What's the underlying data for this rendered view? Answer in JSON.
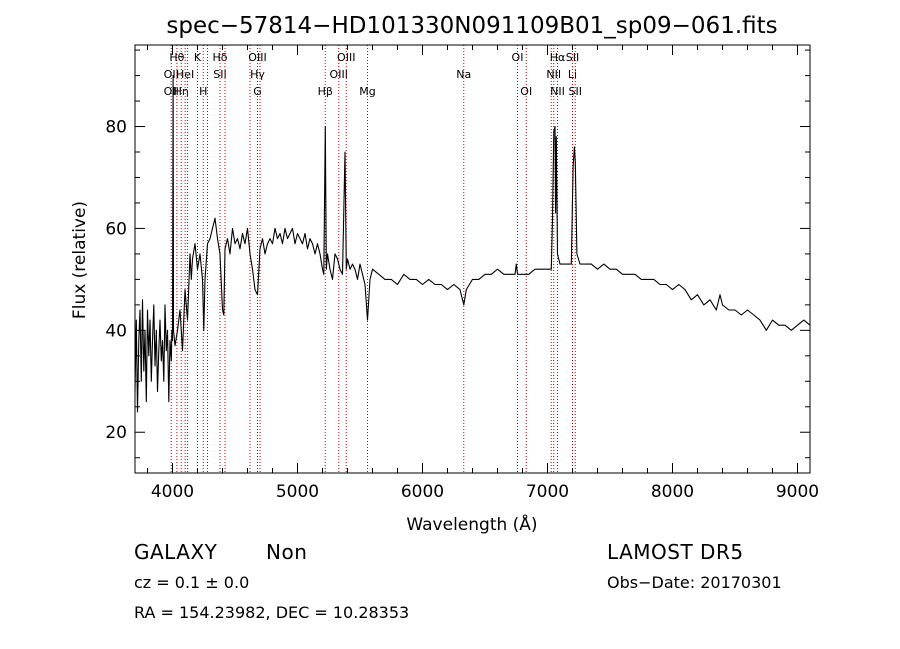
{
  "chart_data": {
    "type": "line",
    "title": "spec−57814−HD101330N091109B01_sp09−061.fits",
    "xlabel": "Wavelength (Å)",
    "ylabel": "Flux (relative)",
    "xlim": [
      3700,
      9100
    ],
    "ylim": [
      12,
      96
    ],
    "xticks": [
      4000,
      5000,
      6000,
      7000,
      8000,
      9000
    ],
    "yticks": [
      20,
      40,
      60,
      80
    ],
    "grid": false,
    "series": [
      {
        "color": "#000000",
        "points": [
          [
            3700,
            28
          ],
          [
            3710,
            42
          ],
          [
            3720,
            24
          ],
          [
            3730,
            38
          ],
          [
            3740,
            44
          ],
          [
            3750,
            30
          ],
          [
            3760,
            46
          ],
          [
            3770,
            32
          ],
          [
            3780,
            40
          ],
          [
            3790,
            26
          ],
          [
            3800,
            44
          ],
          [
            3810,
            35
          ],
          [
            3820,
            42
          ],
          [
            3830,
            30
          ],
          [
            3840,
            38
          ],
          [
            3850,
            45
          ],
          [
            3860,
            33
          ],
          [
            3870,
            40
          ],
          [
            3880,
            28
          ],
          [
            3890,
            36
          ],
          [
            3900,
            42
          ],
          [
            3910,
            34
          ],
          [
            3920,
            38
          ],
          [
            3930,
            30
          ],
          [
            3940,
            45
          ],
          [
            3950,
            36
          ],
          [
            3960,
            40
          ],
          [
            3970,
            26
          ],
          [
            3980,
            38
          ],
          [
            3990,
            34
          ],
          [
            3995,
            40
          ],
          [
            4000,
            38
          ],
          [
            4005,
            90
          ],
          [
            4008,
            40
          ],
          [
            4020,
            37
          ],
          [
            4040,
            40
          ],
          [
            4060,
            44
          ],
          [
            4080,
            36
          ],
          [
            4100,
            48
          ],
          [
            4120,
            42
          ],
          [
            4140,
            55
          ],
          [
            4150,
            50
          ],
          [
            4160,
            54
          ],
          [
            4180,
            57
          ],
          [
            4200,
            52
          ],
          [
            4220,
            55
          ],
          [
            4240,
            50
          ],
          [
            4250,
            40
          ],
          [
            4260,
            50
          ],
          [
            4280,
            57
          ],
          [
            4300,
            58
          ],
          [
            4320,
            60
          ],
          [
            4340,
            62
          ],
          [
            4360,
            58
          ],
          [
            4380,
            55
          ],
          [
            4400,
            44
          ],
          [
            4410,
            43
          ],
          [
            4420,
            56
          ],
          [
            4440,
            58
          ],
          [
            4460,
            55
          ],
          [
            4480,
            60
          ],
          [
            4500,
            57
          ],
          [
            4520,
            58
          ],
          [
            4540,
            56
          ],
          [
            4560,
            59
          ],
          [
            4580,
            57
          ],
          [
            4600,
            60
          ],
          [
            4620,
            55
          ],
          [
            4640,
            52
          ],
          [
            4660,
            48
          ],
          [
            4680,
            47
          ],
          [
            4700,
            56
          ],
          [
            4720,
            58
          ],
          [
            4740,
            55
          ],
          [
            4760,
            57
          ],
          [
            4780,
            58
          ],
          [
            4800,
            57
          ],
          [
            4820,
            60
          ],
          [
            4840,
            58
          ],
          [
            4860,
            59
          ],
          [
            4880,
            57
          ],
          [
            4900,
            60
          ],
          [
            4920,
            58
          ],
          [
            4940,
            59
          ],
          [
            4960,
            60
          ],
          [
            4980,
            57
          ],
          [
            5000,
            59
          ],
          [
            5020,
            58
          ],
          [
            5040,
            57
          ],
          [
            5060,
            59
          ],
          [
            5080,
            56
          ],
          [
            5100,
            58
          ],
          [
            5120,
            57
          ],
          [
            5140,
            55
          ],
          [
            5160,
            57
          ],
          [
            5180,
            55
          ],
          [
            5200,
            52
          ],
          [
            5210,
            51
          ],
          [
            5222,
            80
          ],
          [
            5230,
            52
          ],
          [
            5240,
            55
          ],
          [
            5260,
            52
          ],
          [
            5280,
            50
          ],
          [
            5300,
            55
          ],
          [
            5320,
            54
          ],
          [
            5340,
            52
          ],
          [
            5360,
            51
          ],
          [
            5380,
            75
          ],
          [
            5390,
            52
          ],
          [
            5400,
            54
          ],
          [
            5420,
            52
          ],
          [
            5440,
            53
          ],
          [
            5460,
            52
          ],
          [
            5480,
            50
          ],
          [
            5500,
            53
          ],
          [
            5520,
            51
          ],
          [
            5540,
            49
          ],
          [
            5560,
            42
          ],
          [
            5580,
            50
          ],
          [
            5600,
            52
          ],
          [
            5650,
            51
          ],
          [
            5700,
            50
          ],
          [
            5750,
            50
          ],
          [
            5800,
            49
          ],
          [
            5850,
            51
          ],
          [
            5900,
            50
          ],
          [
            5950,
            50
          ],
          [
            6000,
            49
          ],
          [
            6050,
            50
          ],
          [
            6100,
            49
          ],
          [
            6150,
            49
          ],
          [
            6200,
            48
          ],
          [
            6250,
            49
          ],
          [
            6300,
            48
          ],
          [
            6320,
            46
          ],
          [
            6330,
            45
          ],
          [
            6350,
            48
          ],
          [
            6400,
            50
          ],
          [
            6450,
            50
          ],
          [
            6500,
            51
          ],
          [
            6550,
            51
          ],
          [
            6600,
            52
          ],
          [
            6650,
            51
          ],
          [
            6700,
            51
          ],
          [
            6740,
            51
          ],
          [
            6750,
            53
          ],
          [
            6760,
            51
          ],
          [
            6800,
            51
          ],
          [
            6850,
            51
          ],
          [
            6900,
            52
          ],
          [
            6950,
            52
          ],
          [
            7000,
            52
          ],
          [
            7030,
            52
          ],
          [
            7040,
            62
          ],
          [
            7050,
            79
          ],
          [
            7060,
            80
          ],
          [
            7065,
            63
          ],
          [
            7070,
            78
          ],
          [
            7080,
            55
          ],
          [
            7100,
            53
          ],
          [
            7150,
            53
          ],
          [
            7190,
            53
          ],
          [
            7205,
            72
          ],
          [
            7215,
            76
          ],
          [
            7222,
            73
          ],
          [
            7235,
            55
          ],
          [
            7260,
            53
          ],
          [
            7300,
            53
          ],
          [
            7350,
            53
          ],
          [
            7400,
            52
          ],
          [
            7450,
            53
          ],
          [
            7500,
            52
          ],
          [
            7550,
            52
          ],
          [
            7600,
            51
          ],
          [
            7650,
            51
          ],
          [
            7700,
            51
          ],
          [
            7750,
            50
          ],
          [
            7800,
            50
          ],
          [
            7850,
            50
          ],
          [
            7900,
            49
          ],
          [
            7950,
            49
          ],
          [
            8000,
            48
          ],
          [
            8050,
            49
          ],
          [
            8100,
            48
          ],
          [
            8150,
            46
          ],
          [
            8200,
            47
          ],
          [
            8250,
            45
          ],
          [
            8300,
            46
          ],
          [
            8350,
            44
          ],
          [
            8380,
            47
          ],
          [
            8400,
            45
          ],
          [
            8450,
            44
          ],
          [
            8500,
            44
          ],
          [
            8550,
            43
          ],
          [
            8600,
            44
          ],
          [
            8650,
            43
          ],
          [
            8700,
            42
          ],
          [
            8750,
            40
          ],
          [
            8800,
            42
          ],
          [
            8850,
            41
          ],
          [
            8900,
            41
          ],
          [
            8950,
            40
          ],
          [
            9000,
            41
          ],
          [
            9050,
            42
          ],
          [
            9100,
            41
          ]
        ]
      }
    ],
    "lines": [
      {
        "x": 3990,
        "labels": [
          {
            "text": "OII",
            "row": 2
          },
          {
            "text": "OII",
            "row": 3
          }
        ]
      },
      {
        "x": 4035,
        "labels": [
          {
            "text": "Hθ",
            "row": 1
          }
        ]
      },
      {
        "x": 4070,
        "labels": [
          {
            "text": "Hη",
            "row": 3
          }
        ]
      },
      {
        "x": 4101,
        "labels": [
          {
            "text": "HeI",
            "row": 2
          }
        ]
      },
      {
        "x": 4120,
        "labels": []
      },
      {
        "x": 4200,
        "labels": [
          {
            "text": "K",
            "row": 1
          }
        ]
      },
      {
        "x": 4246,
        "labels": [
          {
            "text": "H",
            "row": 3
          }
        ]
      },
      {
        "x": 4280,
        "labels": []
      },
      {
        "x": 4380,
        "labels": [
          {
            "text": "Hδ",
            "row": 1
          },
          {
            "text": "SII",
            "row": 2
          }
        ]
      },
      {
        "x": 4420,
        "labels": []
      },
      {
        "x": 4620,
        "labels": []
      },
      {
        "x": 4680,
        "labels": [
          {
            "text": "OIII",
            "row": 1
          },
          {
            "text": "Hγ",
            "row": 2
          },
          {
            "text": "G",
            "row": 3
          }
        ]
      },
      {
        "x": 4700,
        "labels": []
      },
      {
        "x": 5222,
        "labels": [
          {
            "text": "Hβ",
            "row": 3
          }
        ]
      },
      {
        "x": 5330,
        "labels": [
          {
            "text": "OIII",
            "row": 2
          }
        ]
      },
      {
        "x": 5390,
        "labels": [
          {
            "text": "OIII",
            "row": 1
          }
        ]
      },
      {
        "x": 5560,
        "labels": [
          {
            "text": "Mg",
            "row": 3
          }
        ]
      },
      {
        "x": 6330,
        "labels": [
          {
            "text": "Na",
            "row": 2
          }
        ]
      },
      {
        "x": 6760,
        "labels": [
          {
            "text": "OI",
            "row": 1
          }
        ]
      },
      {
        "x": 6830,
        "labels": [
          {
            "text": "OI",
            "row": 3
          }
        ]
      },
      {
        "x": 7030,
        "labels": []
      },
      {
        "x": 7050,
        "labels": [
          {
            "text": "NII",
            "row": 2
          }
        ]
      },
      {
        "x": 7080,
        "labels": [
          {
            "text": "Hα",
            "row": 1
          },
          {
            "text": "NII",
            "row": 3
          }
        ]
      },
      {
        "x": 7200,
        "labels": [
          {
            "text": "SII",
            "row": 1
          },
          {
            "text": "Li",
            "row": 2
          }
        ]
      },
      {
        "x": 7222,
        "labels": [
          {
            "text": "SII",
            "row": 3
          }
        ]
      }
    ]
  },
  "info": {
    "class": "GALAXY",
    "subclass": "Non",
    "survey": "LAMOST DR5",
    "cz": "cz = 0.1 ± 0.0",
    "obs_date": "Obs−Date: 20170301",
    "radec": "RA = 154.23982, DEC =  10.28353"
  }
}
